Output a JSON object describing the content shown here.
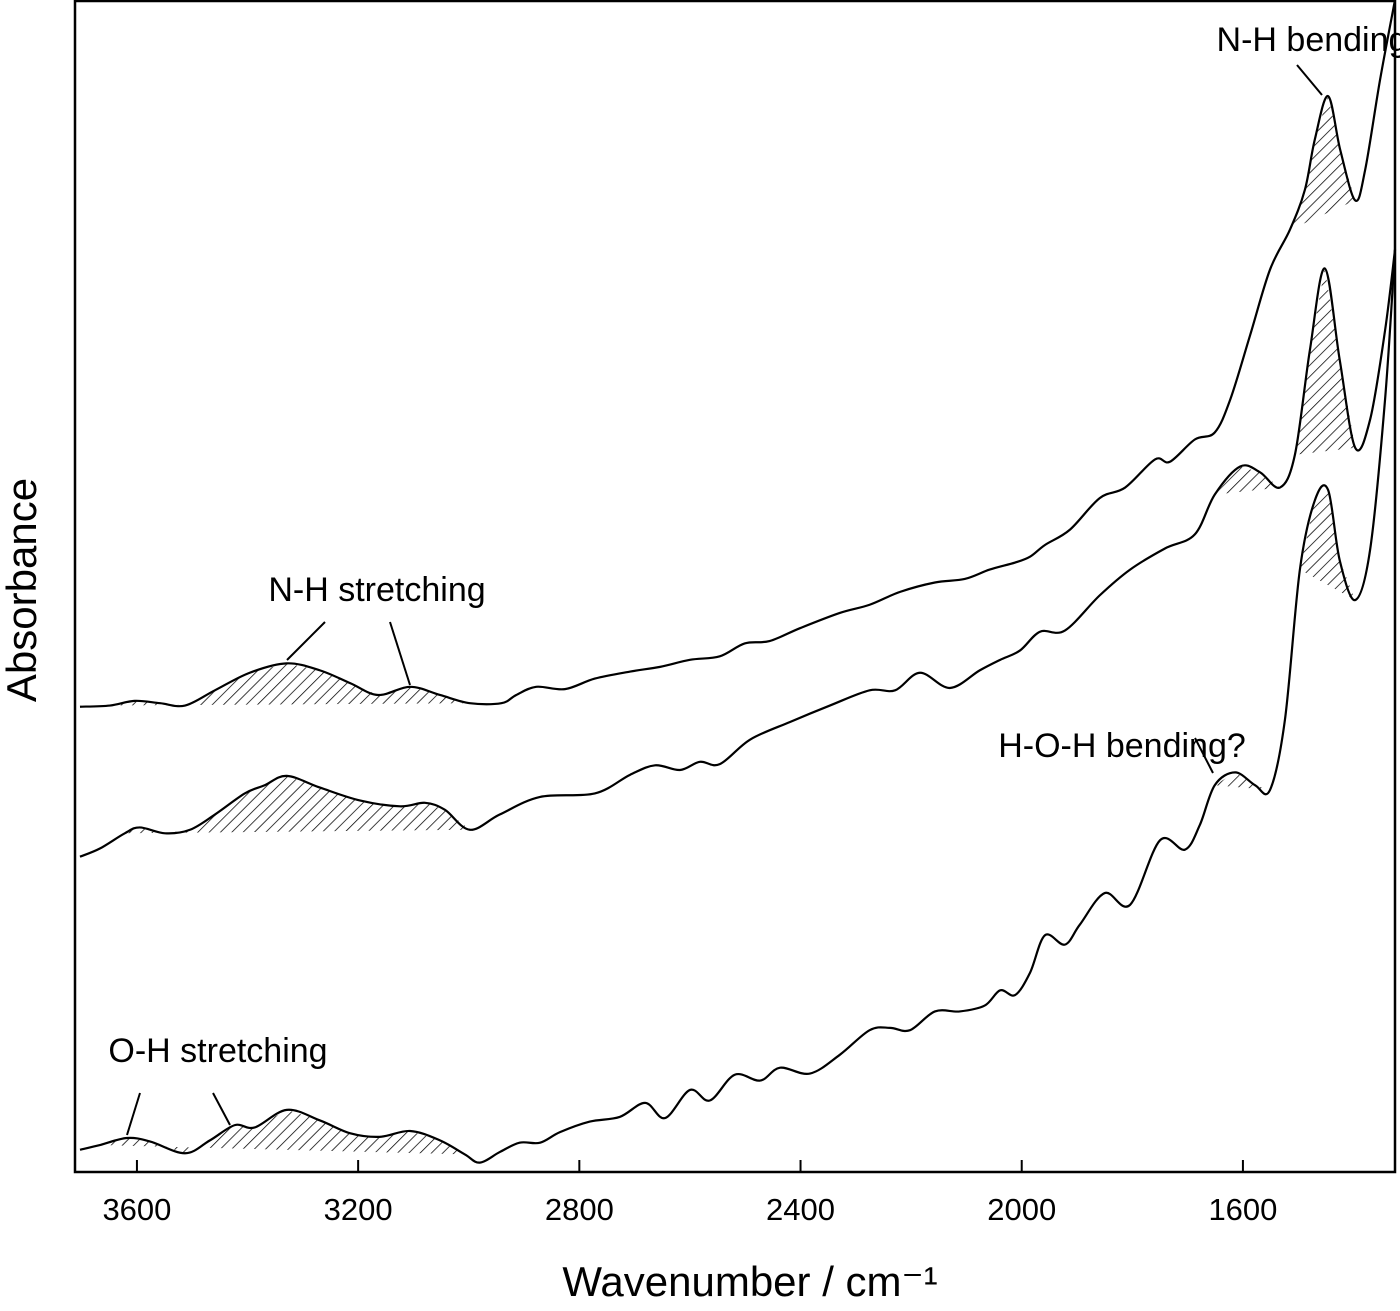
{
  "chart_data": {
    "type": "line",
    "x_label": "Wavenumber / cm⁻¹",
    "y_label": "Absorbance",
    "xlim": [
      3712,
      1325
    ],
    "ylim": [
      0,
      100
    ],
    "xticks": [
      3600,
      3200,
      2800,
      2400,
      2000,
      1600
    ],
    "color": "#000000",
    "annotations": [
      "N-H bending",
      "N-H stretching",
      "H-O-H bending?",
      "O-H stretching"
    ],
    "series": [
      {
        "x": [
          3703,
          3649,
          3604,
          3558,
          3513,
          3459,
          3396,
          3329,
          3269,
          3214,
          3164,
          3106,
          3052,
          2998,
          2941,
          2914,
          2878,
          2826,
          2772,
          2708,
          2654,
          2600,
          2546,
          2501,
          2456,
          2401,
          2329,
          2275,
          2220,
          2157,
          2103,
          2058,
          2012,
          1985,
          1958,
          1913,
          1859,
          1813,
          1759,
          1732,
          1687,
          1651,
          1623,
          1587,
          1551,
          1515,
          1488,
          1470,
          1446,
          1424,
          1397,
          1379,
          1352,
          1325
        ],
        "values": [
          39.7,
          39.8,
          40.2,
          40.0,
          39.8,
          41.1,
          42.6,
          43.4,
          42.8,
          41.7,
          40.7,
          41.4,
          40.7,
          40.0,
          40.0,
          40.7,
          41.4,
          41.2,
          42.1,
          42.7,
          43.1,
          43.7,
          44.0,
          45.1,
          45.3,
          46.4,
          47.7,
          48.4,
          49.5,
          50.3,
          50.6,
          51.4,
          52.0,
          52.5,
          53.5,
          54.8,
          57.5,
          58.4,
          60.8,
          60.6,
          62.5,
          63.1,
          65.9,
          71.4,
          77.0,
          80.4,
          83.8,
          88.1,
          91.8,
          87.2,
          82.9,
          85.5,
          93.2,
          100
        ]
      },
      {
        "x": [
          3703,
          3667,
          3622,
          3595,
          3549,
          3504,
          3459,
          3405,
          3369,
          3329,
          3269,
          3197,
          3124,
          3079,
          3043,
          2998,
          2944,
          2871,
          2772,
          2708,
          2663,
          2618,
          2582,
          2546,
          2491,
          2419,
          2347,
          2275,
          2229,
          2184,
          2130,
          2076,
          2039,
          2003,
          1967,
          1922,
          1859,
          1804,
          1741,
          1687,
          1651,
          1605,
          1569,
          1533,
          1506,
          1479,
          1452,
          1425,
          1397,
          1370,
          1343,
          1325
        ],
        "values": [
          26.9,
          27.6,
          28.9,
          29.4,
          28.9,
          29.2,
          30.5,
          32.3,
          33.0,
          33.8,
          32.8,
          31.7,
          31.2,
          31.5,
          30.9,
          29.2,
          30.5,
          32.0,
          32.3,
          33.9,
          34.7,
          34.3,
          35.0,
          34.8,
          36.9,
          38.4,
          39.8,
          41.1,
          41.1,
          42.6,
          41.3,
          42.8,
          43.7,
          44.5,
          46.1,
          46.2,
          49.2,
          51.4,
          53.2,
          54.4,
          57.8,
          60.2,
          59.7,
          58.4,
          61.2,
          70.1,
          77.1,
          69.3,
          61.8,
          64.2,
          71.8,
          78.7
        ]
      },
      {
        "x": [
          3703,
          3667,
          3618,
          3576,
          3513,
          3468,
          3423,
          3387,
          3329,
          3269,
          3214,
          3161,
          3106,
          3052,
          3007,
          2980,
          2944,
          2908,
          2871,
          2835,
          2781,
          2727,
          2681,
          2645,
          2600,
          2564,
          2519,
          2473,
          2437,
          2383,
          2329,
          2275,
          2238,
          2202,
          2157,
          2112,
          2067,
          2039,
          2012,
          1985,
          1958,
          1922,
          1895,
          1850,
          1804,
          1750,
          1705,
          1678,
          1651,
          1614,
          1578,
          1551,
          1524,
          1497,
          1470,
          1446,
          1425,
          1397,
          1370,
          1343,
          1325
        ],
        "values": [
          1.9,
          2.3,
          2.9,
          2.6,
          1.6,
          2.7,
          4.0,
          3.8,
          5.3,
          4.4,
          3.3,
          3.0,
          3.5,
          2.7,
          1.5,
          0.8,
          1.7,
          2.5,
          2.5,
          3.4,
          4.3,
          4.7,
          5.9,
          4.6,
          7.0,
          6.1,
          8.3,
          7.8,
          8.9,
          8.4,
          10.0,
          12.1,
          12.3,
          12.1,
          13.7,
          13.7,
          14.2,
          15.5,
          15.1,
          17.0,
          20.2,
          19.4,
          21.1,
          23.8,
          22.8,
          28.3,
          27.5,
          29.6,
          33.0,
          34.1,
          33.0,
          32.6,
          38.6,
          51.4,
          57.3,
          58.2,
          52.2,
          48.8,
          53.1,
          65.9,
          78.7
        ]
      }
    ]
  }
}
